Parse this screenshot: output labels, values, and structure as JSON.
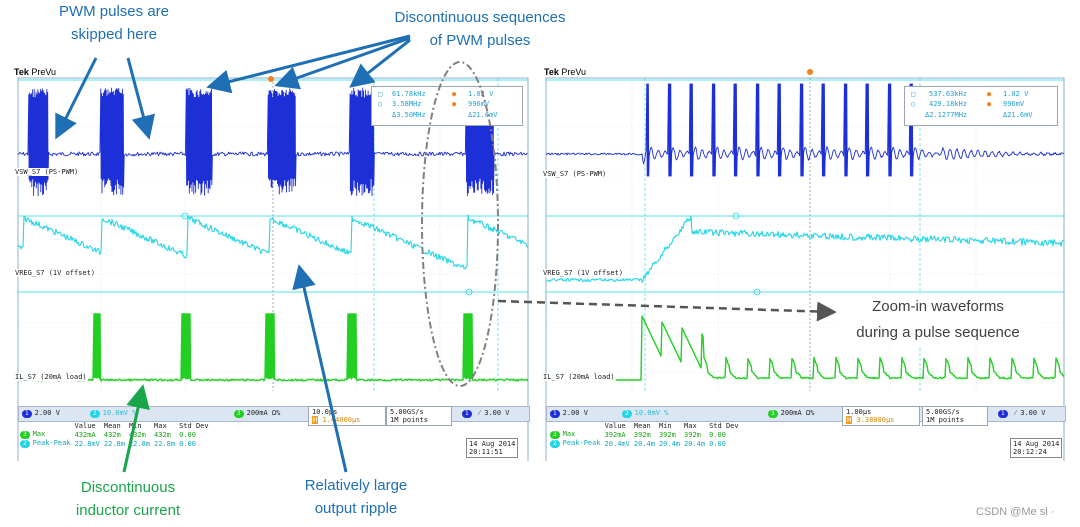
{
  "annotations": {
    "skipped_line1": "PWM pulses are",
    "skipped_line2": "skipped here",
    "discont_line1": "Discontinuous sequences",
    "discont_line2": "of PWM pulses",
    "zoom_line1": "Zoom-in waveforms",
    "zoom_line2": "during a pulse sequence",
    "inductor_line1": "Discontinuous",
    "inductor_line2": "inductor current",
    "ripple_line1": "Relatively large",
    "ripple_line2": "output ripple"
  },
  "watermark": "CSDN @Me sl ·",
  "colors": {
    "ch1": "#1d2fd6",
    "ch2": "#23d6e6",
    "ch3": "#22cf22",
    "annotation_blue": "#1f6fb5",
    "annotation_green": "#19a64a"
  },
  "left_scope": {
    "brand": "Tek",
    "mode": "PreVu",
    "ch1_label": "VSW_S7 (PS-PWM)",
    "ch2_label": "VREG_S7 (1V offset)",
    "ch3_label": "IL_S7 (20mA load)",
    "cursor_readout": {
      "r1c1": "61.78kHz",
      "r1c2": "1.02 V",
      "r2c1": "3.58MHz",
      "r2c2": "996mV",
      "r3c1": "Δ3.50MHz",
      "r3c2": "Δ21.6mV"
    },
    "ch1_scale": "2.00 V",
    "ch2_scale": "10.0mV %",
    "ch3_scale": "200mA Ω%",
    "timebase": "10.0μs",
    "delay": "1.44000μs",
    "sample_rate": "5.00GS/s",
    "record": "1M points",
    "trigger_level": "3.00 V",
    "meas_headers": [
      "Value",
      "Mean",
      "Min",
      "Max",
      "Std Dev"
    ],
    "meas_rows": [
      {
        "name": "Max",
        "values": [
          "432mA",
          "432m",
          "432m",
          "432m",
          "0.00"
        ]
      },
      {
        "name": "Peak-Peak",
        "values": [
          "22.8mV",
          "22.8m",
          "22.8m",
          "22.8m",
          "0.00"
        ]
      }
    ],
    "date": "14 Aug 2014",
    "time": "20:11:51"
  },
  "right_scope": {
    "brand": "Tek",
    "mode": "PreVu",
    "ch1_label": "VSW_S7 (PS-PWM)",
    "ch2_label": "VREG_S7 (1V offset)",
    "ch3_label": "IL_S7 (20mA load)",
    "cursor_readout": {
      "r1c1": "537.63kHz",
      "r1c2": "1.02 V",
      "r2c1": "429.18kHz",
      "r2c2": "996mV",
      "r3c1": "Δ2.1277MHz",
      "r3c2": "Δ21.6mV"
    },
    "ch1_scale": "2.00 V",
    "ch2_scale": "10.0mV %",
    "ch3_scale": "200mA Ω%",
    "timebase": "1.00μs",
    "delay": "3.38000μs",
    "sample_rate": "5.00GS/s",
    "record": "1M points",
    "trigger_level": "3.00 V",
    "meas_headers": [
      "Value",
      "Mean",
      "Min",
      "Max",
      "Std Dev"
    ],
    "meas_rows": [
      {
        "name": "Max",
        "values": [
          "392mA",
          "392m",
          "392m",
          "392m",
          "0.00"
        ]
      },
      {
        "name": "Peak-Peak",
        "values": [
          "20.4mV",
          "20.4m",
          "20.4m",
          "20.4m",
          "0.00"
        ]
      }
    ],
    "date": "14 Aug 2014",
    "time": "20:12:24"
  }
}
